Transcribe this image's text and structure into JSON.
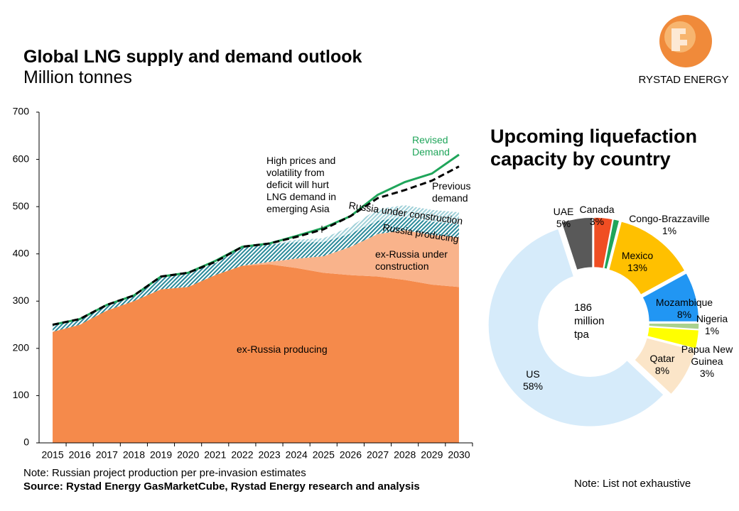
{
  "logo_text": "RYSTAD ENERGY",
  "chart_data": [
    {
      "type": "area",
      "title": "Global LNG supply and demand outlook",
      "subtitle": "Million tonnes",
      "x": [
        2015,
        2016,
        2017,
        2018,
        2019,
        2020,
        2021,
        2022,
        2023,
        2024,
        2025,
        2026,
        2027,
        2028,
        2029,
        2030
      ],
      "xlim": [
        2014.5,
        2030.5
      ],
      "ylim": [
        0,
        700
      ],
      "yticks": [
        0,
        100,
        200,
        300,
        400,
        500,
        600,
        700
      ],
      "series": [
        {
          "name": "ex-Russia producing",
          "mark": "area",
          "color": "#f58a4b",
          "values": [
            235,
            250,
            280,
            300,
            325,
            330,
            355,
            375,
            378,
            370,
            360,
            355,
            352,
            345,
            335,
            330
          ]
        },
        {
          "name": "ex-Russia under construction",
          "mark": "area",
          "color": "#f9b38b",
          "values": [
            0,
            0,
            0,
            0,
            0,
            0,
            0,
            0,
            5,
            20,
            35,
            60,
            90,
            105,
            105,
            105
          ]
        },
        {
          "name": "Russia producing",
          "mark": "area",
          "color": "#2a8a9a",
          "pattern": "hatch",
          "values": [
            15,
            12,
            10,
            10,
            25,
            30,
            25,
            40,
            37,
            35,
            30,
            28,
            28,
            28,
            28,
            28
          ]
        },
        {
          "name": "Russia under construction",
          "mark": "area",
          "color": "#9fd0d8",
          "pattern": "hatch",
          "values": [
            0,
            0,
            0,
            0,
            0,
            0,
            0,
            0,
            0,
            5,
            8,
            15,
            25,
            25,
            25,
            25
          ]
        },
        {
          "name": "Revised Demand",
          "mark": "line",
          "color": "#1fa55a",
          "values": [
            250,
            262,
            292,
            312,
            352,
            360,
            385,
            415,
            422,
            438,
            455,
            480,
            525,
            552,
            570,
            610
          ]
        },
        {
          "name": "Previous demand",
          "mark": "line",
          "color": "#000000",
          "dash": true,
          "values": [
            250,
            262,
            292,
            312,
            352,
            360,
            383,
            415,
            422,
            436,
            452,
            480,
            518,
            535,
            555,
            585
          ]
        }
      ],
      "annotation": "High prices and volatility from deficit will hurt LNG demand in emerging Asia",
      "note": "Note: Russian project production per pre-invasion estimates",
      "source": "Source: Rystad Energy GasMarketCube, Rystad Energy research and analysis"
    },
    {
      "type": "donut",
      "title": "Upcoming liquefaction capacity by country",
      "center_label": [
        "186",
        "million",
        "tpa"
      ],
      "categories": [
        "Canada",
        "Congo-Brazzaville",
        "Mexico",
        "Mozambique",
        "Nigeria",
        "Papua New Guinea",
        "Qatar",
        "US",
        "UAE"
      ],
      "values": [
        3,
        1,
        13,
        8,
        1,
        3,
        8,
        58,
        5
      ],
      "value_labels": [
        "3%",
        "1%",
        "13%",
        "8%",
        "1%",
        "3%",
        "8%",
        "58%",
        "5%"
      ],
      "colors": [
        "#f04e23",
        "#1fa55a",
        "#ffc000",
        "#2196f3",
        "#a9d18e",
        "#ffff00",
        "#fbe5c8",
        "#d6ebfa",
        "#595959"
      ],
      "note": "Note: List not exhaustive"
    }
  ]
}
